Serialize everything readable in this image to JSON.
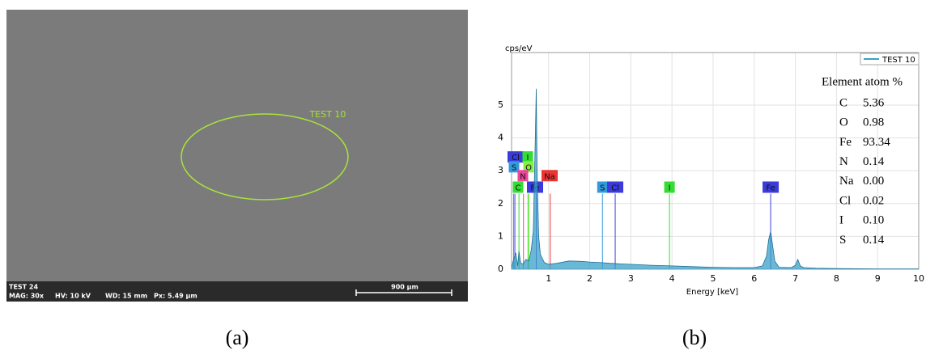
{
  "panel_a": {
    "region_label": "TEST 10",
    "sample": "TEST 24",
    "mag": "MAG: 30x",
    "hv": "HV: 10 kV",
    "wd": "WD: 15 mm",
    "px": "Px: 5.49 µm",
    "scale": "900 µm",
    "caption": "(a)"
  },
  "chart_data": {
    "type": "line",
    "y_label": "cps/eV",
    "x_label": "Energy [keV]",
    "xlim": [
      0.1,
      10
    ],
    "xticks": [
      1,
      2,
      3,
      4,
      5,
      6,
      7,
      8,
      9,
      10
    ],
    "ylim": [
      0,
      6.6
    ],
    "yticks": [
      0,
      1,
      2,
      3,
      4,
      5
    ],
    "grid": true,
    "legend": "top-right",
    "series": [
      {
        "name": "TEST 10",
        "color": "#3aa0c8",
        "x": [
          0.1,
          0.15,
          0.2,
          0.25,
          0.28,
          0.32,
          0.38,
          0.45,
          0.52,
          0.58,
          0.63,
          0.68,
          0.7,
          0.72,
          0.76,
          0.8,
          0.9,
          1.0,
          1.2,
          1.5,
          1.8,
          2.0,
          2.3,
          2.5,
          2.8,
          3.0,
          3.5,
          4.0,
          4.5,
          5.0,
          5.5,
          6.0,
          6.2,
          6.3,
          6.35,
          6.4,
          6.45,
          6.5,
          6.6,
          6.9,
          7.0,
          7.06,
          7.12,
          7.2,
          7.5,
          8,
          9,
          10
        ],
        "values": [
          0.05,
          0.3,
          0.5,
          0.1,
          0.55,
          0.2,
          0.15,
          0.3,
          0.25,
          0.6,
          1.2,
          4.2,
          5.5,
          3.0,
          1.0,
          0.45,
          0.2,
          0.15,
          0.18,
          0.25,
          0.24,
          0.22,
          0.2,
          0.18,
          0.16,
          0.15,
          0.12,
          0.1,
          0.08,
          0.06,
          0.05,
          0.05,
          0.1,
          0.4,
          0.9,
          1.15,
          0.7,
          0.25,
          0.06,
          0.05,
          0.12,
          0.3,
          0.1,
          0.05,
          0.03,
          0.02,
          0.01,
          0.01
        ]
      }
    ],
    "markers": [
      {
        "label": "Cl",
        "energy": 0.18,
        "color": "#3b3bdc"
      },
      {
        "label": "I",
        "energy": 0.5,
        "color": "#33dd33"
      },
      {
        "label": "S",
        "energy": 0.15,
        "color": "#3399dd"
      },
      {
        "label": "O",
        "energy": 0.52,
        "color": "#88ee44"
      },
      {
        "label": "N",
        "energy": 0.39,
        "color": "#ee4499"
      },
      {
        "label": "Na",
        "energy": 1.04,
        "color": "#ee3333"
      },
      {
        "label": "C",
        "energy": 0.28,
        "color": "#33dd33"
      },
      {
        "label": "Fe",
        "energy": 0.7,
        "color": "#3b3bdc"
      },
      {
        "label": "S",
        "energy": 2.31,
        "color": "#3399dd"
      },
      {
        "label": "Cl",
        "energy": 2.62,
        "color": "#3b3bdc"
      },
      {
        "label": "I",
        "energy": 3.94,
        "color": "#33dd33"
      },
      {
        "label": "Fe",
        "energy": 6.4,
        "color": "#3b3bdc"
      }
    ],
    "table": {
      "header": "Element atom %",
      "rows": [
        [
          "C",
          "5.36"
        ],
        [
          "O",
          "0.98"
        ],
        [
          "Fe",
          "93.34"
        ],
        [
          "N",
          "0.14"
        ],
        [
          "Na",
          "0.00"
        ],
        [
          "Cl",
          "0.02"
        ],
        [
          "I",
          "0.10"
        ],
        [
          "S",
          "0.14"
        ]
      ]
    },
    "caption": "(b)"
  }
}
